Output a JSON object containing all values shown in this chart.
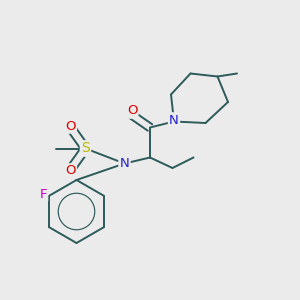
{
  "background_color": "#ebebeb",
  "bond_color": "#2d5a5a",
  "atom_colors": {
    "N": "#2020cc",
    "O": "#dd0000",
    "S": "#bbbb00",
    "F": "#cc00cc"
  },
  "lw": 1.4
}
